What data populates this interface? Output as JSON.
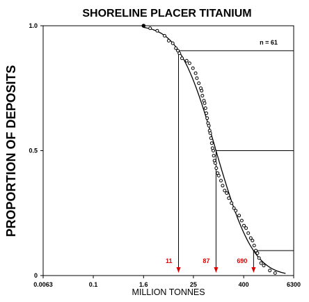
{
  "chart_data": {
    "type": "scatter",
    "title": "SHORELINE PLACER TITANIUM",
    "xlabel": "MILLION TONNES",
    "ylabel": "PROPORTION OF DEPOSITS",
    "x_scale": "log",
    "xlim": [
      0.0063,
      6300
    ],
    "ylim": [
      0,
      1
    ],
    "x_ticks": [
      "0.0063",
      "0.1",
      "1.6",
      "25",
      "400",
      "6300"
    ],
    "y_ticks": [
      "0",
      "0.5",
      "1.0"
    ],
    "annotation": "n = 61",
    "percentiles": [
      {
        "label": "11",
        "x": 11,
        "y": 0.9
      },
      {
        "label": "87",
        "x": 87,
        "y": 0.5
      },
      {
        "label": "690",
        "x": 690,
        "y": 0.1
      }
    ],
    "fitted_curve": {
      "type": "lognormal",
      "median": 87,
      "sd_log10": 0.7
    },
    "series": [
      {
        "x": [
          1.6,
          2.3,
          3.4,
          5.1,
          6.4,
          8.0,
          9.5,
          10.6,
          11.5,
          13.3,
          17.2,
          20.2,
          24.3,
          28.3,
          30.3,
          33.7,
          37.5,
          39.3,
          41.0,
          44.6,
          46.4,
          48.7,
          51.0,
          53.4,
          55.9,
          58.5,
          61.1,
          63.3,
          66.0,
          68.8,
          71.7,
          74.8,
          76.5,
          79.9,
          83.5,
          88.4,
          95.0,
          101,
          114,
          125,
          140,
          157,
          176,
          205,
          233,
          258,
          311,
          360,
          405,
          456,
          514,
          591,
          650,
          713,
          781,
          853,
          931,
          1042,
          1210,
          1690,
          2260
        ],
        "y": [
          1.0,
          0.99,
          0.98,
          0.96,
          0.94,
          0.93,
          0.91,
          0.9,
          0.89,
          0.87,
          0.86,
          0.85,
          0.83,
          0.81,
          0.79,
          0.77,
          0.75,
          0.74,
          0.72,
          0.7,
          0.69,
          0.67,
          0.65,
          0.63,
          0.61,
          0.6,
          0.58,
          0.57,
          0.55,
          0.53,
          0.51,
          0.5,
          0.48,
          0.46,
          0.45,
          0.43,
          0.41,
          0.4,
          0.38,
          0.36,
          0.34,
          0.33,
          0.31,
          0.29,
          0.27,
          0.26,
          0.24,
          0.22,
          0.2,
          0.19,
          0.17,
          0.15,
          0.14,
          0.12,
          0.1,
          0.09,
          0.07,
          0.05,
          0.04,
          0.02,
          0.01
        ]
      }
    ]
  }
}
